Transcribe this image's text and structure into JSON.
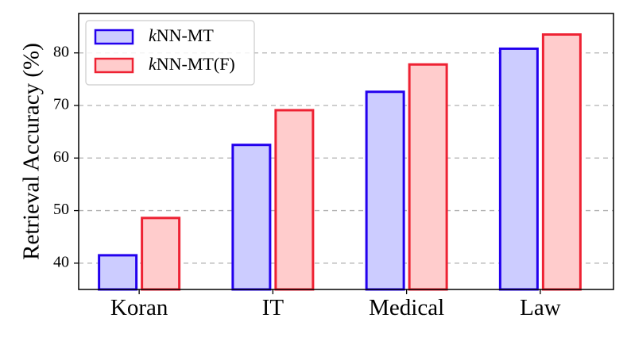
{
  "chart_data": {
    "type": "bar",
    "categories": [
      "Koran",
      "IT",
      "Medical",
      "Law"
    ],
    "series": [
      {
        "name_prefix": "k",
        "name_rest": "NN-MT",
        "name": "kNN-MT",
        "values": [
          41.5,
          62.5,
          72.6,
          80.8
        ],
        "fill": "#ccccff",
        "stroke": "#2200ee"
      },
      {
        "name_prefix": "k",
        "name_rest": "NN-MT(F)",
        "name": "kNN-MT(F)",
        "values": [
          48.6,
          69.1,
          77.8,
          83.5
        ],
        "fill": "#ffcccc",
        "stroke": "#ee2233"
      }
    ],
    "xlabel": "",
    "ylabel": "Retrieval Accuracy (%)",
    "ylim": [
      35,
      87.5
    ],
    "yticks": [
      40,
      50,
      60,
      70,
      80
    ],
    "grid": "y-dashed",
    "legend_position": "top-left"
  }
}
